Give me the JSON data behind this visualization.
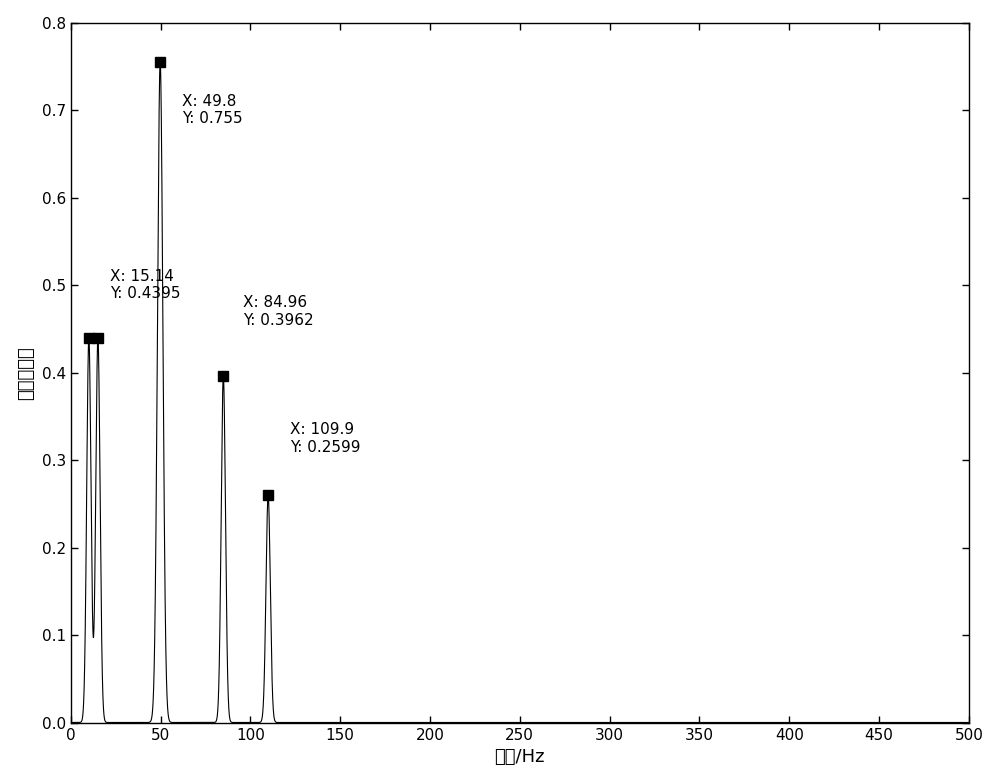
{
  "peaks": [
    {
      "freq": 10.1,
      "amp": 0.44,
      "annotate": false
    },
    {
      "freq": 15.14,
      "amp": 0.4395,
      "annotate": true,
      "label": "X: 15.14\nY: 0.4395"
    },
    {
      "freq": 49.8,
      "amp": 0.755,
      "annotate": true,
      "label": "X: 49.8\nY: 0.755"
    },
    {
      "freq": 84.96,
      "amp": 0.3962,
      "annotate": true,
      "label": "X: 84.96\nY: 0.3962"
    },
    {
      "freq": 109.9,
      "amp": 0.2599,
      "annotate": true,
      "label": "X: 109.9\nY: 0.2599"
    }
  ],
  "ann_offsets": [
    [
      22,
      0.485
    ],
    [
      62,
      0.685
    ],
    [
      96,
      0.455
    ],
    [
      122,
      0.31
    ]
  ],
  "xlim": [
    0,
    500
  ],
  "ylim": [
    0,
    0.8
  ],
  "xticks": [
    0,
    50,
    100,
    150,
    200,
    250,
    300,
    350,
    400,
    450,
    500
  ],
  "yticks": [
    0,
    0.1,
    0.2,
    0.3,
    0.4,
    0.5,
    0.6,
    0.7,
    0.8
  ],
  "xlabel": "频率/Hz",
  "ylabel": "归一化幅値",
  "background_color": "#ffffff",
  "line_color": "#000000",
  "peak_widths": [
    1.2,
    1.2,
    1.5,
    1.2,
    1.2
  ],
  "noise_floor": 0.0005
}
